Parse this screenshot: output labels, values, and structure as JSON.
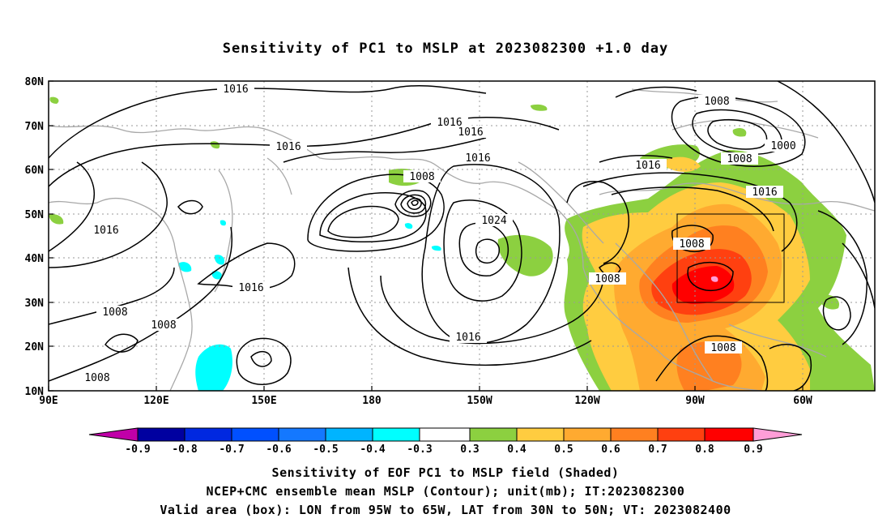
{
  "title": "Sensitivity of PC1 to MSLP at 2023082300 +1.0 day",
  "lat_ticks": [
    "80N",
    "70N",
    "60N",
    "50N",
    "40N",
    "30N",
    "20N",
    "10N"
  ],
  "lon_ticks": [
    "90E",
    "120E",
    "150E",
    "180",
    "150W",
    "120W",
    "90W",
    "60W"
  ],
  "contour_labels": [
    "1016",
    "1016",
    "1016",
    "1016",
    "1016",
    "1008",
    "1008",
    "1000",
    "1008",
    "1016",
    "1016",
    "1016",
    "1008",
    "1024",
    "1016",
    "1008",
    "1008",
    "1008",
    "1016",
    "1008",
    "1008"
  ],
  "colorbar": {
    "labels": [
      "-0.9",
      "-0.8",
      "-0.7",
      "-0.6",
      "-0.5",
      "-0.4",
      "-0.3",
      "0.3",
      "0.4",
      "0.5",
      "0.6",
      "0.7",
      "0.8",
      "0.9"
    ],
    "colors": [
      "#c000a8",
      "#0000a0",
      "#0028e0",
      "#0050ff",
      "#1478ff",
      "#00b4ff",
      "#00ffff",
      "#ffffff",
      "#8cd040",
      "#ffcc40",
      "#ffaa30",
      "#ff8020",
      "#ff4010",
      "#ff0000",
      "#ff9ed8"
    ]
  },
  "valid_box": {
    "lon_min": "95W",
    "lon_max": "65W",
    "lat_min": "30N",
    "lat_max": "50N"
  },
  "footer": {
    "line1": "Sensitivity of EOF PC1 to MSLP field (Shaded)",
    "line2": "NCEP+CMC ensemble mean MSLP (Contour); unit(mb); IT:2023082300",
    "line3": "Valid area (box): LON from 95W to 65W, LAT from 30N to 50N; VT: 2023082400"
  }
}
